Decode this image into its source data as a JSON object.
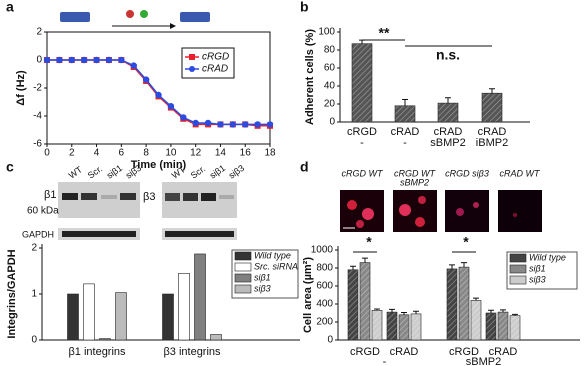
{
  "chart_data": [
    {
      "type": "line",
      "panel": "a",
      "xlabel": "Time (min)",
      "ylabel": "Δf (Hz)",
      "x": [
        0,
        1,
        2,
        3,
        4,
        5,
        6,
        7,
        8,
        9,
        10,
        11,
        12,
        13,
        14,
        15,
        16,
        17,
        18
      ],
      "series": [
        {
          "name": "cRGD",
          "color": "#e8202a",
          "marker": "square",
          "values": [
            0,
            0,
            0,
            0,
            0,
            0,
            0,
            -0.5,
            -1.5,
            -2.6,
            -3.4,
            -4.2,
            -4.6,
            -4.6,
            -4.6,
            -4.6,
            -4.6,
            -4.7,
            -4.7
          ]
        },
        {
          "name": "cRAD",
          "color": "#2b4ce0",
          "marker": "circle",
          "values": [
            0,
            0,
            0,
            0,
            0,
            0,
            0,
            -0.4,
            -1.4,
            -2.5,
            -3.3,
            -4.1,
            -4.5,
            -4.5,
            -4.6,
            -4.6,
            -4.6,
            -4.6,
            -4.6
          ]
        }
      ],
      "xlim": [
        0,
        18
      ],
      "xticks": [
        0,
        2,
        4,
        6,
        8,
        10,
        12,
        14,
        16,
        18
      ],
      "ylim": [
        -6,
        2
      ],
      "yticks": [
        -6,
        -4,
        -2,
        0,
        2
      ],
      "legend": "upper right"
    },
    {
      "type": "bar",
      "panel": "b",
      "ylabel": "Adherent cells (%)",
      "categories": [
        "cRGD",
        "cRAD",
        "cRAD",
        "cRAD"
      ],
      "subcategories": [
        "-",
        "-",
        "sBMP2",
        "iBMP2"
      ],
      "values": [
        87,
        18,
        21,
        32
      ],
      "errors": [
        4,
        7,
        6,
        5
      ],
      "color": "#555555",
      "hatch": true,
      "ylim": [
        0,
        100
      ],
      "yticks": [
        0,
        20,
        40,
        60,
        80,
        100
      ],
      "annotations": [
        {
          "text": "**"
        },
        {
          "text": "n.s."
        }
      ]
    },
    {
      "type": "bar",
      "panel": "c",
      "ylabel": "Integrins/GAPDH",
      "blot": {
        "lanes": [
          "WT",
          "Scr.",
          "siβ1",
          "siβ3"
        ],
        "bands": [
          "β1",
          "60 kDa",
          "GAPDH",
          "β3"
        ]
      },
      "categories": [
        "β1 integrins",
        "β3 integrins"
      ],
      "series": [
        {
          "name": "Wild type",
          "color": "#333333",
          "values": [
            1.0,
            1.0
          ]
        },
        {
          "name": "Src. siRNA",
          "color": "#ffffff",
          "values": [
            1.22,
            1.45
          ]
        },
        {
          "name": "siβ1",
          "color": "#808080",
          "values": [
            0.03,
            1.87
          ]
        },
        {
          "name": "siβ3",
          "color": "#bbbbbb",
          "values": [
            1.03,
            0.12
          ]
        }
      ],
      "ylim": [
        0,
        2
      ],
      "yticks": [
        0,
        1,
        2
      ],
      "legend": "upper right"
    },
    {
      "type": "bar",
      "panel": "d",
      "ylabel": "Cell area (µm²)",
      "micrographs": [
        {
          "label": "cRGD WT"
        },
        {
          "label": "cRGD WT",
          "sublabel": "sBMP2"
        },
        {
          "label": "cRGD siβ3"
        },
        {
          "label": "cRAD WT"
        }
      ],
      "categories": [
        "cRGD",
        "cRAD",
        "cRGD",
        "cRAD"
      ],
      "conditions": [
        "-",
        "sBMP2"
      ],
      "series": [
        {
          "name": "Wild type",
          "color": "#444444",
          "values": [
            780,
            310,
            790,
            300
          ],
          "errors": [
            40,
            30,
            45,
            30
          ]
        },
        {
          "name": "siβ1",
          "color": "#888888",
          "values": [
            860,
            280,
            810,
            310
          ],
          "errors": [
            50,
            25,
            50,
            25
          ]
        },
        {
          "name": "siβ3",
          "color": "#cccccc",
          "values": [
            330,
            290,
            440,
            270
          ],
          "errors": [
            15,
            30,
            25,
            15
          ]
        }
      ],
      "hatch": true,
      "ylim": [
        0,
        1000
      ],
      "yticks": [
        0,
        200,
        400,
        600,
        800,
        1000
      ],
      "annotations": [
        {
          "text": "*"
        },
        {
          "text": "*"
        }
      ],
      "legend": "upper right"
    }
  ]
}
